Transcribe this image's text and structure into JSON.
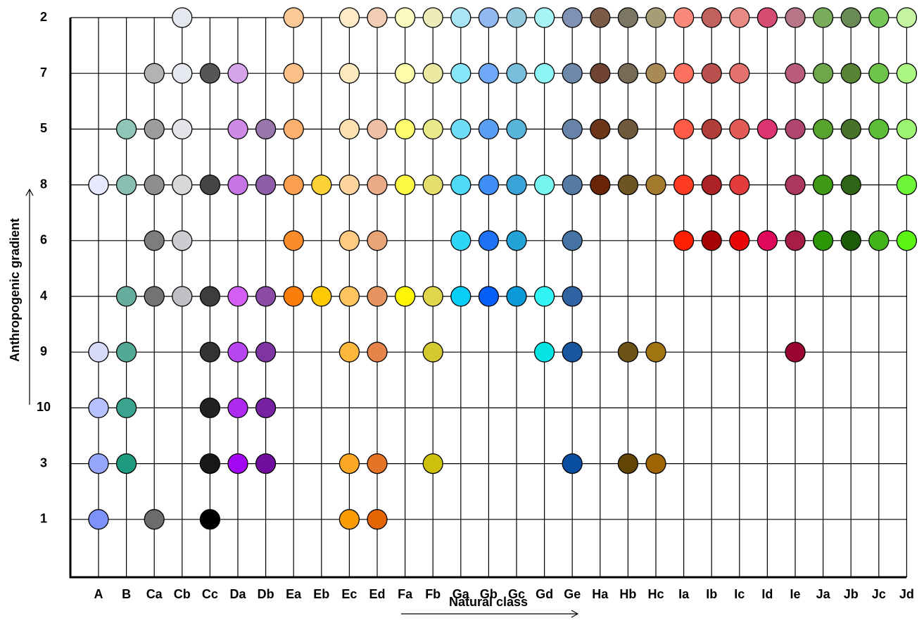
{
  "chart_data": {
    "type": "presence-matrix",
    "x_label": "Natural class",
    "y_label": "Anthropogenic gradient",
    "categories": [
      "A",
      "B",
      "Ca",
      "Cb",
      "Cc",
      "Da",
      "Db",
      "Ea",
      "Eb",
      "Ec",
      "Ed",
      "Fa",
      "Fb",
      "Ga",
      "Gb",
      "Gc",
      "Gd",
      "Ge",
      "Ha",
      "Hb",
      "Hc",
      "Ia",
      "Ib",
      "Ic",
      "Id",
      "Ie",
      "Ja",
      "Jb",
      "Jc",
      "Jd"
    ],
    "rows": [
      {
        "label": "2",
        "points": [
          [
            "Cb",
            "#e6e8ef"
          ],
          [
            "Ea",
            "#fcc896"
          ],
          [
            "Ec",
            "#fdebc8"
          ],
          [
            "Ed",
            "#f1cdb4"
          ],
          [
            "Fa",
            "#fdfcc0"
          ],
          [
            "Fb",
            "#eeecbb"
          ],
          [
            "Ga",
            "#a8e6f7"
          ],
          [
            "Gb",
            "#92b8f2"
          ],
          [
            "Gc",
            "#93c8dd"
          ],
          [
            "Gd",
            "#a6f4f5"
          ],
          [
            "Ge",
            "#7f92b4"
          ],
          [
            "Ha",
            "#7b5a47"
          ],
          [
            "Hb",
            "#7c7664"
          ],
          [
            "Hc",
            "#a69d77"
          ],
          [
            "Ia",
            "#fa887b"
          ],
          [
            "Ib",
            "#c1615d"
          ],
          [
            "Ic",
            "#e98a85"
          ],
          [
            "Id",
            "#d54c73"
          ],
          [
            "Ie",
            "#b97588"
          ],
          [
            "Ja",
            "#79ad5c"
          ],
          [
            "Jb",
            "#6a8a56"
          ],
          [
            "Jc",
            "#76c65a"
          ],
          [
            "Jd",
            "#c4f4a0"
          ]
        ]
      },
      {
        "label": "7",
        "points": [
          [
            "Ca",
            "#b3b3b6"
          ],
          [
            "Cb",
            "#e6e8ef"
          ],
          [
            "Cc",
            "#565656"
          ],
          [
            "Da",
            "#d6a4ea"
          ],
          [
            "Ea",
            "#fcbf88"
          ],
          [
            "Ec",
            "#fde8c0"
          ],
          [
            "Fa",
            "#fdfcab"
          ],
          [
            "Fb",
            "#ece9a3"
          ],
          [
            "Ga",
            "#86e5fb"
          ],
          [
            "Gb",
            "#6fa8f6"
          ],
          [
            "Gc",
            "#76bedb"
          ],
          [
            "Gd",
            "#8ef5f6"
          ],
          [
            "Ge",
            "#6f89ab"
          ],
          [
            "Ha",
            "#6f4432"
          ],
          [
            "Hb",
            "#776b56"
          ],
          [
            "Hc",
            "#a98a55"
          ],
          [
            "Ia",
            "#fd705f"
          ],
          [
            "Ib",
            "#b9504e"
          ],
          [
            "Ic",
            "#e6726f"
          ],
          [
            "Ie",
            "#b85c7a"
          ],
          [
            "Ja",
            "#6ca84b"
          ],
          [
            "Jb",
            "#578435"
          ],
          [
            "Jc",
            "#6ec44a"
          ],
          [
            "Jd",
            "#acf684"
          ]
        ]
      },
      {
        "label": "5",
        "points": [
          [
            "B",
            "#8fc5b7"
          ],
          [
            "Ca",
            "#9c9c9c"
          ],
          [
            "Cb",
            "#e3e4e8"
          ],
          [
            "Da",
            "#cf8ae8"
          ],
          [
            "Db",
            "#9777ac"
          ],
          [
            "Ea",
            "#fbb070"
          ],
          [
            "Ec",
            "#fde0b0"
          ],
          [
            "Ed",
            "#eebfa2"
          ],
          [
            "Fa",
            "#fefb71"
          ],
          [
            "Fb",
            "#ebe88a"
          ],
          [
            "Ga",
            "#6ddcf5"
          ],
          [
            "Gb",
            "#5b9ff5"
          ],
          [
            "Gc",
            "#58b4d8"
          ],
          [
            "Ge",
            "#6783a7"
          ],
          [
            "Ha",
            "#6c3519"
          ],
          [
            "Hb",
            "#6e5a3b"
          ],
          [
            "Ia",
            "#fd5a47"
          ],
          [
            "Ib",
            "#b23e3a"
          ],
          [
            "Ic",
            "#e45a57"
          ],
          [
            "Id",
            "#dc3470"
          ],
          [
            "Ie",
            "#b04670"
          ],
          [
            "Ja",
            "#58a22e"
          ],
          [
            "Jb",
            "#47722a"
          ],
          [
            "Jc",
            "#5cbe36"
          ],
          [
            "Jd",
            "#9cf470"
          ]
        ]
      },
      {
        "label": "8",
        "points": [
          [
            "A",
            "#e6e8fb"
          ],
          [
            "B",
            "#88bfb2"
          ],
          [
            "Ca",
            "#8e8e8e"
          ],
          [
            "Cb",
            "#d8d8db"
          ],
          [
            "Cc",
            "#454545"
          ],
          [
            "Da",
            "#c674e6"
          ],
          [
            "Db",
            "#8e5ea8"
          ],
          [
            "Ea",
            "#fba050"
          ],
          [
            "Eb",
            "#fdd236"
          ],
          [
            "Ec",
            "#fdd49c"
          ],
          [
            "Ed",
            "#eaab86"
          ],
          [
            "Fa",
            "#fdf844"
          ],
          [
            "Fb",
            "#e4df6c"
          ],
          [
            "Ga",
            "#4ed9f6"
          ],
          [
            "Gb",
            "#3f8ef5"
          ],
          [
            "Gc",
            "#3aa4d8"
          ],
          [
            "Gd",
            "#76f4f0"
          ],
          [
            "Ge",
            "#557aa4"
          ],
          [
            "Ha",
            "#692506"
          ],
          [
            "Hb",
            "#6c5423"
          ],
          [
            "Hc",
            "#a47a2c"
          ],
          [
            "Ia",
            "#fd3a22"
          ],
          [
            "Ib",
            "#ad2224"
          ],
          [
            "Ic",
            "#e33c3c"
          ],
          [
            "Ie",
            "#ad3660"
          ],
          [
            "Ja",
            "#3e9914"
          ],
          [
            "Jb",
            "#2f6416"
          ],
          [
            "Jd",
            "#6ff537"
          ]
        ]
      },
      {
        "label": "6",
        "points": [
          [
            "Ca",
            "#7d7d7d"
          ],
          [
            "Cb",
            "#cccdd0"
          ],
          [
            "Ea",
            "#fb8c2c"
          ],
          [
            "Ec",
            "#fdcc82"
          ],
          [
            "Ed",
            "#e8a474"
          ],
          [
            "Ga",
            "#2fd5f7"
          ],
          [
            "Gb",
            "#1f72f6"
          ],
          [
            "Gc",
            "#24a3d9"
          ],
          [
            "Ge",
            "#4672a4"
          ],
          [
            "Ia",
            "#fd1f00"
          ],
          [
            "Ib",
            "#a60404"
          ],
          [
            "Ic",
            "#e90606"
          ],
          [
            "Id",
            "#e0085a"
          ],
          [
            "Ie",
            "#a81c48"
          ],
          [
            "Ja",
            "#2c9607"
          ],
          [
            "Jb",
            "#1c5c08"
          ],
          [
            "Jc",
            "#42b41a"
          ],
          [
            "Jd",
            "#5cf414"
          ]
        ]
      },
      {
        "label": "4",
        "points": [
          [
            "B",
            "#66ad9e"
          ],
          [
            "Ca",
            "#737373"
          ],
          [
            "Cb",
            "#bfc0c4"
          ],
          [
            "Cc",
            "#3d3d3d"
          ],
          [
            "Da",
            "#d25ef4"
          ],
          [
            "Db",
            "#8a4aa6"
          ],
          [
            "Ea",
            "#fb7e0c"
          ],
          [
            "Eb",
            "#fdc804"
          ],
          [
            "Ec",
            "#fdc460"
          ],
          [
            "Ed",
            "#e69460"
          ],
          [
            "Fa",
            "#fdf506"
          ],
          [
            "Fb",
            "#e0d64c"
          ],
          [
            "Ga",
            "#08cdf5"
          ],
          [
            "Gb",
            "#055ef6"
          ],
          [
            "Gc",
            "#0a9ad8"
          ],
          [
            "Gd",
            "#32f4f4"
          ],
          [
            "Ge",
            "#2e63a4"
          ]
        ]
      },
      {
        "label": "9",
        "points": [
          [
            "A",
            "#d6dbfb"
          ],
          [
            "B",
            "#53a896"
          ],
          [
            "Cc",
            "#333333"
          ],
          [
            "Da",
            "#b746ee"
          ],
          [
            "Db",
            "#7e34a2"
          ],
          [
            "Ec",
            "#fbb83c"
          ],
          [
            "Ed",
            "#e6854a"
          ],
          [
            "Fb",
            "#d4ca30"
          ],
          [
            "Gd",
            "#06e4e4"
          ],
          [
            "Ge",
            "#1956a0"
          ],
          [
            "Hb",
            "#6c5214"
          ],
          [
            "Hc",
            "#a07410"
          ],
          [
            "Ie",
            "#9a0632"
          ]
        ]
      },
      {
        "label": "10",
        "points": [
          [
            "A",
            "#b6c0fb"
          ],
          [
            "B",
            "#3aa48e"
          ],
          [
            "Cc",
            "#222222"
          ],
          [
            "Da",
            "#ad2cf0"
          ],
          [
            "Db",
            "#7622a2"
          ]
        ]
      },
      {
        "label": "3",
        "points": [
          [
            "A",
            "#96a6fb"
          ],
          [
            "B",
            "#1e9a7e"
          ],
          [
            "Cc",
            "#181818"
          ],
          [
            "Da",
            "#a408f2"
          ],
          [
            "Db",
            "#700c9e"
          ],
          [
            "Ec",
            "#fba824"
          ],
          [
            "Ed",
            "#e47426"
          ],
          [
            "Fb",
            "#ccc00c"
          ],
          [
            "Ge",
            "#0a4ea2"
          ],
          [
            "Hb",
            "#624404"
          ],
          [
            "Hc",
            "#9e6404"
          ]
        ]
      },
      {
        "label": "1",
        "points": [
          [
            "A",
            "#7c92f8"
          ],
          [
            "Ca",
            "#6c6c6c"
          ],
          [
            "Cc",
            "#000000"
          ],
          [
            "Ec",
            "#fb9c04"
          ],
          [
            "Ed",
            "#e46404"
          ]
        ]
      }
    ]
  }
}
